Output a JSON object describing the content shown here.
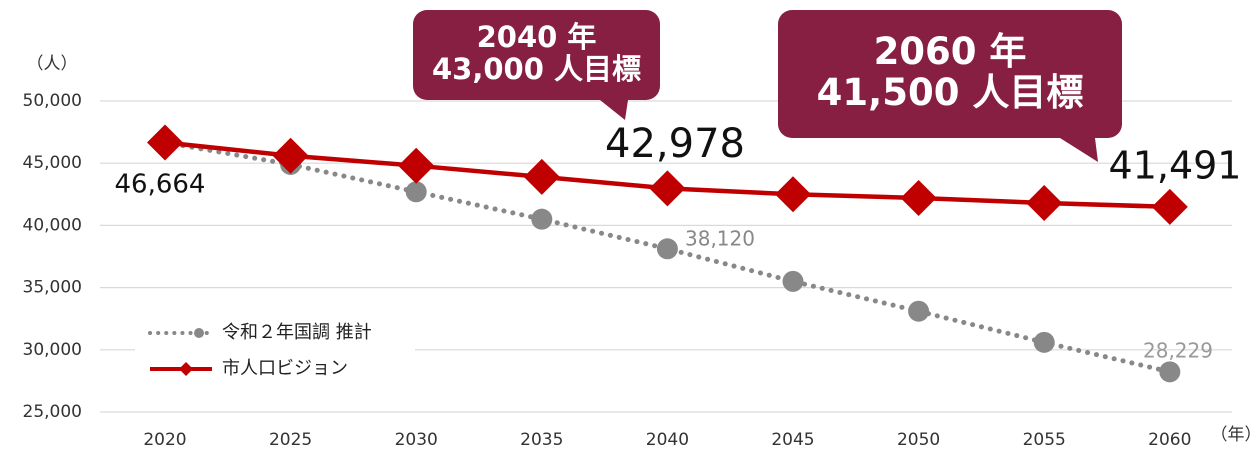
{
  "chart_data": {
    "type": "line",
    "y_unit": "（人）",
    "x_unit": "（年）",
    "categories": [
      "2020",
      "2025",
      "2030",
      "2035",
      "2040",
      "2045",
      "2050",
      "2055",
      "2060"
    ],
    "series": [
      {
        "name": "令和２年国調 推計",
        "color": "#888888",
        "style": "dotted",
        "marker": "circle",
        "values": [
          46664,
          44900,
          42700,
          40500,
          38120,
          35500,
          33100,
          30600,
          28229
        ],
        "value_labels": [
          null,
          null,
          null,
          null,
          "38,120",
          null,
          null,
          null,
          "28,229"
        ]
      },
      {
        "name": "市人口ビジョン",
        "color": "#c00000",
        "style": "solid",
        "marker": "diamond",
        "values": [
          46664,
          45600,
          44800,
          43900,
          42978,
          42500,
          42200,
          41800,
          41491
        ],
        "value_labels": [
          "46,664",
          null,
          null,
          null,
          "42,978",
          null,
          null,
          null,
          "41,491"
        ]
      }
    ],
    "ylim": [
      25000,
      50000
    ],
    "yticks": [
      {
        "value": 25000,
        "label": "25,000"
      },
      {
        "value": 30000,
        "label": "30,000"
      },
      {
        "value": 35000,
        "label": "35,000"
      },
      {
        "value": 40000,
        "label": "40,000"
      },
      {
        "value": 45000,
        "label": "45,000"
      },
      {
        "value": 50000,
        "label": "50,000"
      }
    ],
    "grid": true,
    "legend": "lower left",
    "annotations": [
      {
        "lines": [
          "2040 年",
          "43,000 人目標"
        ],
        "color": "#861f41"
      },
      {
        "lines": [
          "2060 年",
          "41,500 人目標"
        ],
        "color": "#861f41"
      }
    ]
  }
}
